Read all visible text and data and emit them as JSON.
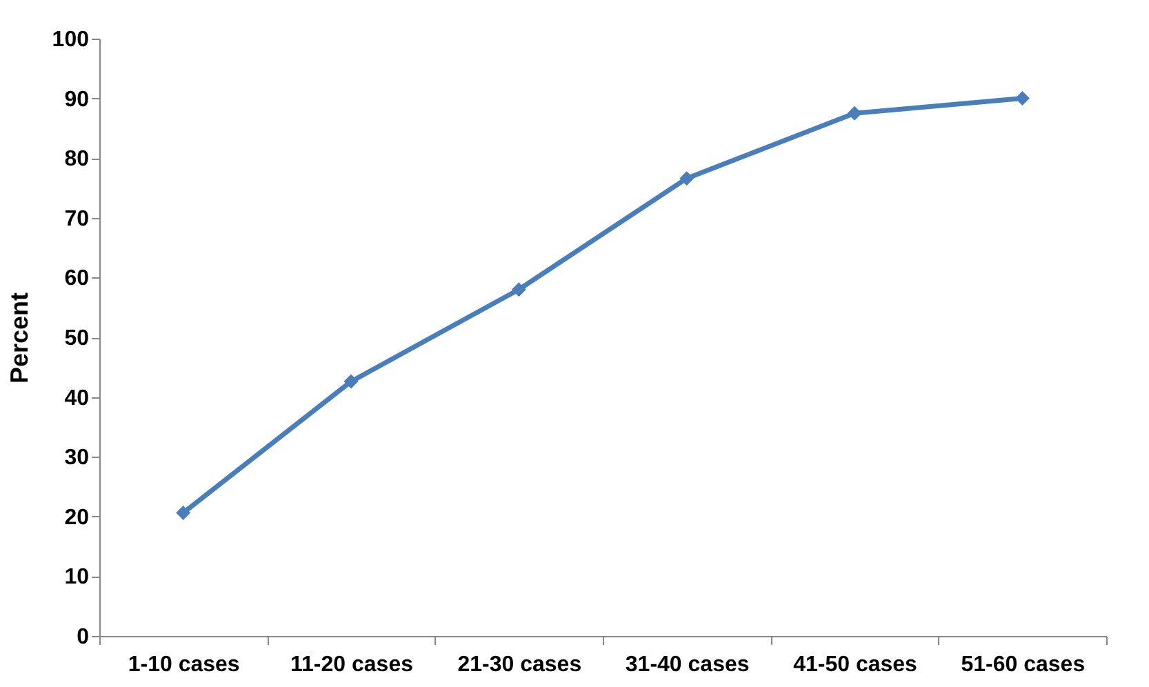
{
  "chart_data": {
    "type": "line",
    "ylabel": "Percent",
    "categories": [
      "1-10 cases",
      "11-20 cases",
      "21-30 cases",
      "31-40 cases",
      "41-50 cases",
      "51-60 cases"
    ],
    "series": [
      {
        "color": "#4a7ebb",
        "values": [
          20.6,
          42.6,
          58,
          76.6,
          87.5,
          90
        ]
      }
    ],
    "ylim": [
      0,
      100
    ],
    "yticks": [
      0,
      10,
      20,
      30,
      40,
      50,
      60,
      70,
      80,
      90,
      100
    ],
    "grid": false,
    "legend": false,
    "marker": "diamond",
    "line_style": "solid"
  }
}
